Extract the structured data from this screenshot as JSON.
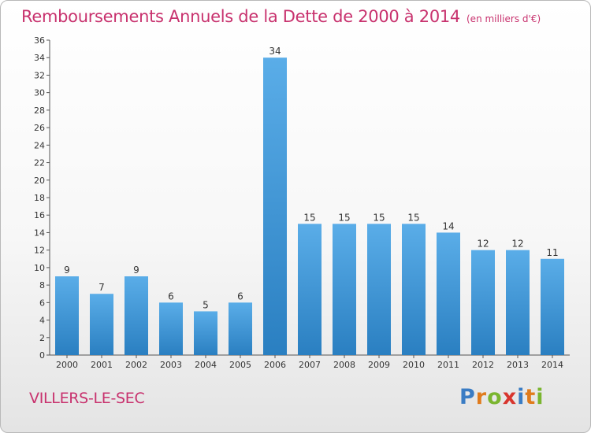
{
  "title": "Remboursements Annuels de la Dette de 2000 à 2014",
  "unit": "(en milliers d'€)",
  "town": "VILLERS-LE-SEC",
  "logo": {
    "letters": [
      "P",
      "r",
      "o",
      "x",
      "i",
      "t",
      "i"
    ],
    "colors": [
      "#3a7cc4",
      "#e07b1c",
      "#7ab52f",
      "#d8362e",
      "#3a7cc4",
      "#e07b1c",
      "#7ab52f"
    ]
  },
  "colors": {
    "bar_top": "#5aade8",
    "bar_bottom": "#2a7fc1",
    "title": "#c8326e"
  },
  "chart_data": {
    "type": "bar",
    "categories": [
      "2000",
      "2001",
      "2002",
      "2003",
      "2004",
      "2005",
      "2006",
      "2007",
      "2008",
      "2009",
      "2010",
      "2011",
      "2012",
      "2013",
      "2014"
    ],
    "values": [
      9,
      7,
      9,
      6,
      5,
      6,
      34,
      15,
      15,
      15,
      15,
      14,
      12,
      12,
      11
    ],
    "ylim": [
      0,
      36
    ],
    "yticks": [
      0,
      2,
      4,
      6,
      8,
      10,
      12,
      14,
      16,
      18,
      20,
      22,
      24,
      26,
      28,
      30,
      32,
      34,
      36
    ],
    "grid": false
  }
}
